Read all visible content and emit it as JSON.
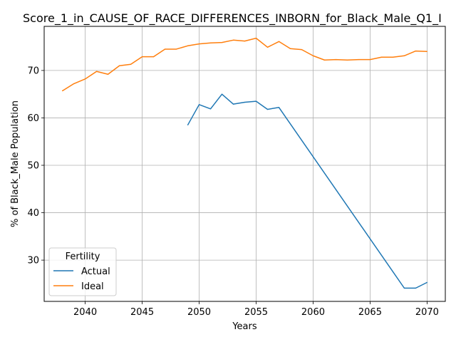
{
  "chart_data": {
    "type": "line",
    "title": "Score_1_in_CAUSE_OF_RACE_DIFFERENCES_INBORN_for_Black_Male_Q1_I",
    "xlabel": "Years",
    "ylabel": "% of Black_Male Population",
    "xlim": [
      2036.4,
      2071.6
    ],
    "ylim": [
      21.3,
      79.3
    ],
    "xticks": [
      2040,
      2045,
      2050,
      2055,
      2060,
      2065,
      2070
    ],
    "yticks": [
      30,
      40,
      50,
      60,
      70
    ],
    "grid": true,
    "legend": {
      "title": "Fertility",
      "placement": "lower-left"
    },
    "series": [
      {
        "name": "Actual",
        "color": "#1f77b4",
        "x": [
          2049,
          2050,
          2051,
          2052,
          2053,
          2054,
          2055,
          2056,
          2057,
          2068,
          2069,
          2070
        ],
        "values": [
          58.5,
          62.8,
          61.9,
          65.0,
          62.9,
          63.3,
          63.5,
          61.8,
          62.2,
          24.1,
          24.1,
          25.3
        ]
      },
      {
        "name": "Ideal",
        "color": "#ff7f0e",
        "x": [
          2038,
          2039,
          2040,
          2041,
          2042,
          2043,
          2044,
          2045,
          2046,
          2047,
          2048,
          2049,
          2050,
          2051,
          2052,
          2053,
          2054,
          2055,
          2056,
          2057,
          2058,
          2059,
          2060,
          2061,
          2062,
          2063,
          2064,
          2065,
          2066,
          2067,
          2068,
          2069,
          2070
        ],
        "values": [
          65.7,
          67.2,
          68.2,
          69.8,
          69.2,
          71.0,
          71.3,
          72.9,
          72.9,
          74.5,
          74.5,
          75.2,
          75.6,
          75.8,
          75.9,
          76.4,
          76.2,
          76.8,
          74.9,
          76.1,
          74.6,
          74.4,
          73.1,
          72.2,
          72.3,
          72.2,
          72.3,
          72.3,
          72.8,
          72.8,
          73.1,
          74.1,
          74.0
        ]
      }
    ]
  }
}
